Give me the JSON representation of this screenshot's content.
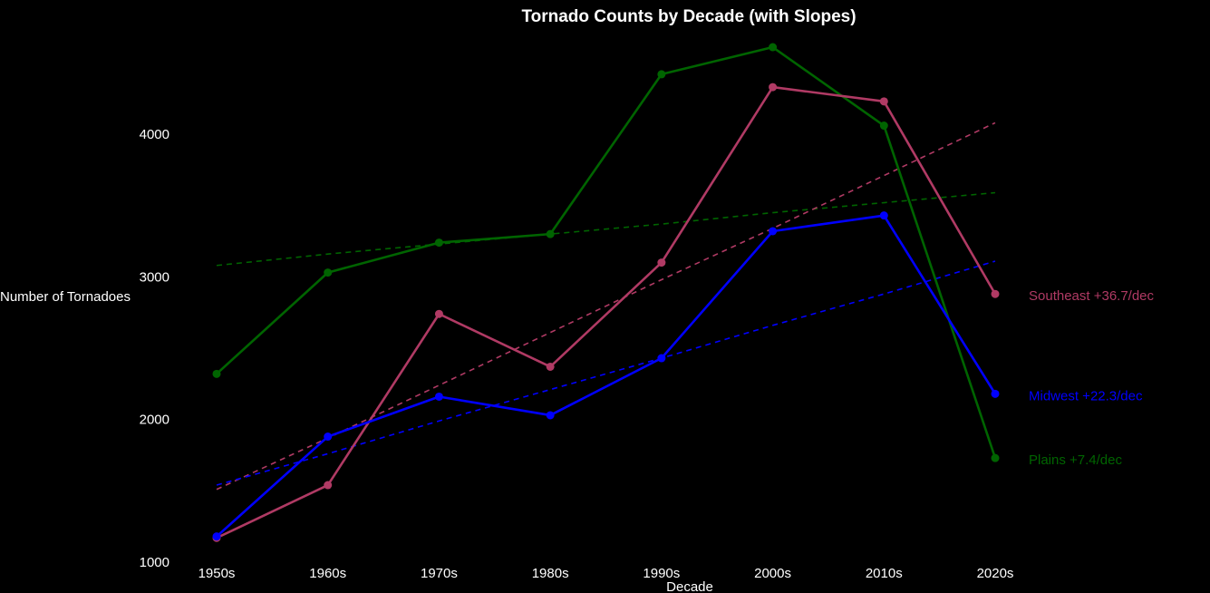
{
  "chart_data": {
    "type": "line",
    "title": "Tornado Counts by Decade (with Slopes)",
    "xlabel": "Decade",
    "ylabel": "Number of Tornadoes",
    "categories": [
      "1950s",
      "1960s",
      "1970s",
      "1980s",
      "1990s",
      "2000s",
      "2010s",
      "2020s"
    ],
    "ylim": [
      1000,
      4780
    ],
    "yticks": [
      1000,
      2000,
      3000,
      4000
    ],
    "grid": false,
    "legend": "direct labels at right",
    "series": [
      {
        "name": "Plains",
        "label": "Plains  +7.4/dec",
        "color": "#006400",
        "values": [
          2320,
          3030,
          3240,
          3300,
          4420,
          4610,
          4060,
          1730
        ],
        "trend": [
          3080,
          3160,
          3230,
          3300,
          3370,
          3450,
          3520,
          3590
        ]
      },
      {
        "name": "Southeast",
        "label": "Southeast  +36.7/dec",
        "color": "#B03A64",
        "values": [
          1170,
          1540,
          2740,
          2370,
          3100,
          4330,
          4230,
          2880
        ],
        "trend": [
          1510,
          1870,
          2240,
          2610,
          2980,
          3340,
          3710,
          4080
        ]
      },
      {
        "name": "Midwest",
        "label": "Midwest  +22.3/dec",
        "color": "#0000FF",
        "values": [
          1180,
          1880,
          2160,
          2030,
          2430,
          3320,
          3430,
          2180
        ],
        "trend": [
          1540,
          1760,
          1990,
          2210,
          2430,
          2660,
          2880,
          3110
        ]
      }
    ]
  }
}
